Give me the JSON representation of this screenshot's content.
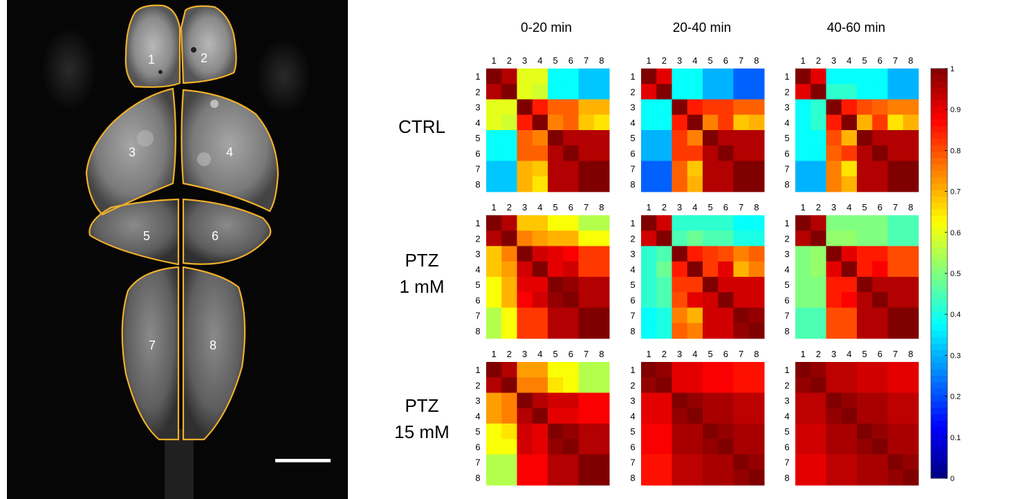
{
  "brain_image": {
    "region_labels": [
      "1",
      "2",
      "3",
      "4",
      "5",
      "6",
      "7",
      "8"
    ],
    "outline_color": "#f0b02a",
    "scale_bar_color": "#ffffff"
  },
  "column_headers": [
    "0-20 min",
    "20-40 min",
    "40-60 min"
  ],
  "row_headers": [
    {
      "line1": "CTRL",
      "line2": ""
    },
    {
      "line1": "PTZ",
      "line2": "1 mM"
    },
    {
      "line1": "PTZ",
      "line2": "15 mM"
    }
  ],
  "colorbar": {
    "colormap": "jet",
    "min": 0,
    "max": 1,
    "tick_labels": [
      "0",
      "0.1",
      "0.2",
      "0.3",
      "0.4",
      "0.5",
      "0.6",
      "0.7",
      "0.8",
      "0.9",
      "1"
    ]
  },
  "chart_data": {
    "type": "heatmap",
    "x_labels": [
      "1",
      "2",
      "3",
      "4",
      "5",
      "6",
      "7",
      "8"
    ],
    "y_labels": [
      "1",
      "2",
      "3",
      "4",
      "5",
      "6",
      "7",
      "8"
    ],
    "vmin": 0,
    "vmax": 1,
    "matrices": [
      {
        "row": "CTRL",
        "column": "0-20 min",
        "values": [
          [
            1.0,
            0.95,
            0.6,
            0.6,
            0.38,
            0.38,
            0.32,
            0.32
          ],
          [
            0.95,
            1.0,
            0.6,
            0.58,
            0.38,
            0.38,
            0.32,
            0.32
          ],
          [
            0.6,
            0.6,
            1.0,
            0.85,
            0.78,
            0.78,
            0.7,
            0.7
          ],
          [
            0.6,
            0.58,
            0.85,
            1.0,
            0.75,
            0.78,
            0.68,
            0.65
          ],
          [
            0.38,
            0.38,
            0.78,
            0.75,
            1.0,
            0.95,
            0.95,
            0.95
          ],
          [
            0.38,
            0.38,
            0.78,
            0.78,
            0.95,
            1.0,
            0.95,
            0.95
          ],
          [
            0.32,
            0.32,
            0.7,
            0.68,
            0.95,
            0.95,
            1.0,
            1.0
          ],
          [
            0.32,
            0.32,
            0.7,
            0.65,
            0.95,
            0.95,
            1.0,
            1.0
          ]
        ]
      },
      {
        "row": "CTRL",
        "column": "20-40 min",
        "values": [
          [
            1.0,
            0.9,
            0.38,
            0.38,
            0.3,
            0.3,
            0.22,
            0.22
          ],
          [
            0.9,
            1.0,
            0.38,
            0.38,
            0.3,
            0.3,
            0.22,
            0.22
          ],
          [
            0.38,
            0.38,
            1.0,
            0.85,
            0.82,
            0.82,
            0.78,
            0.78
          ],
          [
            0.38,
            0.38,
            0.85,
            1.0,
            0.75,
            0.82,
            0.68,
            0.7
          ],
          [
            0.3,
            0.3,
            0.82,
            0.75,
            1.0,
            0.95,
            0.95,
            0.95
          ],
          [
            0.3,
            0.3,
            0.82,
            0.82,
            0.95,
            1.0,
            0.95,
            0.95
          ],
          [
            0.22,
            0.22,
            0.78,
            0.68,
            0.95,
            0.95,
            1.0,
            1.0
          ],
          [
            0.22,
            0.22,
            0.78,
            0.7,
            0.95,
            0.95,
            1.0,
            1.0
          ]
        ]
      },
      {
        "row": "CTRL",
        "column": "40-60 min",
        "values": [
          [
            1.0,
            0.9,
            0.38,
            0.38,
            0.38,
            0.38,
            0.3,
            0.3
          ],
          [
            0.9,
            1.0,
            0.42,
            0.42,
            0.38,
            0.38,
            0.3,
            0.3
          ],
          [
            0.38,
            0.42,
            1.0,
            0.85,
            0.8,
            0.78,
            0.75,
            0.75
          ],
          [
            0.38,
            0.42,
            0.85,
            1.0,
            0.7,
            0.82,
            0.65,
            0.7
          ],
          [
            0.38,
            0.38,
            0.8,
            0.7,
            1.0,
            0.95,
            0.95,
            0.95
          ],
          [
            0.38,
            0.38,
            0.78,
            0.82,
            0.95,
            1.0,
            0.95,
            0.95
          ],
          [
            0.3,
            0.3,
            0.75,
            0.65,
            0.95,
            0.95,
            1.0,
            1.0
          ],
          [
            0.3,
            0.3,
            0.75,
            0.7,
            0.95,
            0.95,
            1.0,
            1.0
          ]
        ]
      },
      {
        "row": "PTZ 1 mM",
        "column": "0-20 min",
        "values": [
          [
            1.0,
            0.95,
            0.68,
            0.68,
            0.62,
            0.62,
            0.55,
            0.55
          ],
          [
            0.95,
            1.0,
            0.75,
            0.72,
            0.7,
            0.7,
            0.62,
            0.62
          ],
          [
            0.68,
            0.75,
            1.0,
            0.92,
            0.9,
            0.88,
            0.82,
            0.82
          ],
          [
            0.68,
            0.72,
            0.92,
            1.0,
            0.9,
            0.92,
            0.82,
            0.82
          ],
          [
            0.62,
            0.7,
            0.9,
            0.9,
            1.0,
            0.98,
            0.95,
            0.95
          ],
          [
            0.62,
            0.7,
            0.88,
            0.92,
            0.98,
            1.0,
            0.95,
            0.95
          ],
          [
            0.55,
            0.62,
            0.82,
            0.82,
            0.95,
            0.95,
            1.0,
            1.0
          ],
          [
            0.55,
            0.62,
            0.82,
            0.82,
            0.95,
            0.95,
            1.0,
            1.0
          ]
        ]
      },
      {
        "row": "PTZ 1 mM",
        "column": "20-40 min",
        "values": [
          [
            1.0,
            0.92,
            0.42,
            0.42,
            0.42,
            0.42,
            0.38,
            0.38
          ],
          [
            0.92,
            1.0,
            0.45,
            0.48,
            0.45,
            0.45,
            0.4,
            0.4
          ],
          [
            0.42,
            0.45,
            1.0,
            0.85,
            0.82,
            0.8,
            0.75,
            0.78
          ],
          [
            0.42,
            0.48,
            0.85,
            1.0,
            0.82,
            0.9,
            0.7,
            0.75
          ],
          [
            0.42,
            0.45,
            0.82,
            0.82,
            1.0,
            0.92,
            0.92,
            0.92
          ],
          [
            0.42,
            0.45,
            0.8,
            0.9,
            0.92,
            1.0,
            0.92,
            0.92
          ],
          [
            0.38,
            0.4,
            0.75,
            0.7,
            0.92,
            0.92,
            1.0,
            0.98
          ],
          [
            0.38,
            0.4,
            0.78,
            0.75,
            0.92,
            0.92,
            0.98,
            1.0
          ]
        ]
      },
      {
        "row": "PTZ 1 mM",
        "column": "40-60 min",
        "values": [
          [
            1.0,
            0.95,
            0.5,
            0.5,
            0.5,
            0.5,
            0.45,
            0.45
          ],
          [
            0.95,
            1.0,
            0.52,
            0.52,
            0.5,
            0.5,
            0.45,
            0.45
          ],
          [
            0.5,
            0.52,
            1.0,
            0.9,
            0.85,
            0.85,
            0.8,
            0.8
          ],
          [
            0.5,
            0.52,
            0.9,
            1.0,
            0.85,
            0.88,
            0.8,
            0.8
          ],
          [
            0.5,
            0.5,
            0.85,
            0.85,
            1.0,
            0.95,
            0.95,
            0.95
          ],
          [
            0.5,
            0.5,
            0.85,
            0.88,
            0.95,
            1.0,
            0.95,
            0.95
          ],
          [
            0.45,
            0.45,
            0.8,
            0.8,
            0.95,
            0.95,
            1.0,
            1.0
          ],
          [
            0.45,
            0.45,
            0.8,
            0.8,
            0.95,
            0.95,
            1.0,
            1.0
          ]
        ]
      },
      {
        "row": "PTZ 15 mM",
        "column": "0-20 min",
        "values": [
          [
            1.0,
            0.95,
            0.72,
            0.72,
            0.62,
            0.62,
            0.55,
            0.55
          ],
          [
            0.95,
            1.0,
            0.75,
            0.75,
            0.65,
            0.62,
            0.55,
            0.55
          ],
          [
            0.72,
            0.75,
            1.0,
            0.95,
            0.92,
            0.92,
            0.88,
            0.88
          ],
          [
            0.72,
            0.75,
            0.95,
            1.0,
            0.9,
            0.9,
            0.88,
            0.88
          ],
          [
            0.62,
            0.65,
            0.92,
            0.9,
            1.0,
            0.98,
            0.95,
            0.95
          ],
          [
            0.62,
            0.62,
            0.92,
            0.9,
            0.98,
            1.0,
            0.95,
            0.95
          ],
          [
            0.55,
            0.55,
            0.88,
            0.88,
            0.95,
            0.95,
            1.0,
            1.0
          ],
          [
            0.55,
            0.55,
            0.88,
            0.88,
            0.95,
            0.95,
            1.0,
            1.0
          ]
        ]
      },
      {
        "row": "PTZ 15 mM",
        "column": "20-40 min",
        "values": [
          [
            1.0,
            0.98,
            0.9,
            0.9,
            0.88,
            0.88,
            0.86,
            0.86
          ],
          [
            0.98,
            1.0,
            0.9,
            0.9,
            0.88,
            0.88,
            0.86,
            0.86
          ],
          [
            0.9,
            0.9,
            1.0,
            0.98,
            0.96,
            0.96,
            0.94,
            0.94
          ],
          [
            0.9,
            0.9,
            0.98,
            1.0,
            0.96,
            0.96,
            0.94,
            0.94
          ],
          [
            0.88,
            0.88,
            0.96,
            0.96,
            1.0,
            0.98,
            0.96,
            0.96
          ],
          [
            0.88,
            0.88,
            0.96,
            0.96,
            0.98,
            1.0,
            0.96,
            0.96
          ],
          [
            0.86,
            0.86,
            0.94,
            0.94,
            0.96,
            0.96,
            1.0,
            0.98
          ],
          [
            0.86,
            0.86,
            0.94,
            0.94,
            0.96,
            0.96,
            0.98,
            1.0
          ]
        ]
      },
      {
        "row": "PTZ 15 mM",
        "column": "40-60 min",
        "values": [
          [
            1.0,
            0.98,
            0.94,
            0.94,
            0.92,
            0.92,
            0.9,
            0.9
          ],
          [
            0.98,
            1.0,
            0.94,
            0.94,
            0.92,
            0.92,
            0.9,
            0.9
          ],
          [
            0.94,
            0.94,
            1.0,
            0.98,
            0.96,
            0.96,
            0.94,
            0.94
          ],
          [
            0.94,
            0.94,
            0.98,
            1.0,
            0.96,
            0.96,
            0.94,
            0.94
          ],
          [
            0.92,
            0.92,
            0.96,
            0.96,
            1.0,
            0.98,
            0.96,
            0.96
          ],
          [
            0.92,
            0.92,
            0.96,
            0.96,
            0.98,
            1.0,
            0.96,
            0.96
          ],
          [
            0.9,
            0.9,
            0.94,
            0.94,
            0.96,
            0.96,
            1.0,
            0.98
          ],
          [
            0.9,
            0.9,
            0.94,
            0.94,
            0.96,
            0.96,
            0.98,
            1.0
          ]
        ]
      }
    ]
  }
}
